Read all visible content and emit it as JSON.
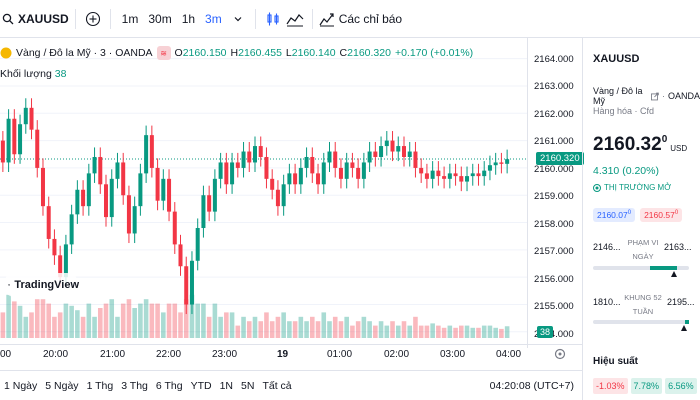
{
  "topbar": {
    "symbol": "XAUUSD",
    "timeframes": [
      "1m",
      "30m",
      "1h",
      "3m"
    ],
    "active_timeframe": "3m",
    "indicators_label": "Các chỉ báo"
  },
  "legend": {
    "title": "Vàng / Đô la Mỹ · 3 · OANDA",
    "o_key": "O",
    "o": "2160.150",
    "h_key": "H",
    "h": "2160.455",
    "l_key": "L",
    "l": "2160.140",
    "c_key": "C",
    "c": "2160.320",
    "change": "+0.170 (+0.01%)",
    "volume_label": "Khối lượng",
    "volume_value": "38"
  },
  "price_axis": [
    "2164.000",
    "2163.000",
    "2162.000",
    "2161.000",
    "2160.000",
    "2159.000",
    "2158.000",
    "2157.000",
    "2156.000",
    "2155.000",
    "2154.000"
  ],
  "current_price_tag": "2160.320",
  "volume_tag": "38",
  "time_axis": [
    "00",
    "20:00",
    "21:00",
    "22:00",
    "23:00",
    "19",
    "01:00",
    "02:00",
    "03:00",
    "04:00"
  ],
  "ranges": [
    "1 Ngày",
    "5 Ngày",
    "1 Thg",
    "3 Thg",
    "6 Thg",
    "YTD",
    "1N",
    "5N",
    "Tất cả"
  ],
  "clock": "04:20:08 (UTC+7)",
  "logo_text": "TradingView",
  "sidebar": {
    "symbol": "XAUUSD",
    "name": "Vàng / Đô la Mỹ",
    "exchange": "OANDA",
    "category": "Hàng hóa · Cfd",
    "price": "2160.32",
    "price_sup": "0",
    "currency": "USD",
    "change": "4.310 (0.20%)",
    "market_status": "THỊ TRƯỜNG MỞ",
    "bid": "2160.07",
    "bid_sup": "0",
    "ask": "2160.57",
    "ask_sup": "0",
    "day_low": "2146...",
    "day_label_1": "PHẠM VI",
    "day_label_2": "NGÀY",
    "day_high": "2163...",
    "wk_low": "1810...",
    "wk_label_1": "KHUNG 52",
    "wk_label_2": "TUẦN",
    "wk_high": "2195...",
    "perf_label": "Hiệu suất",
    "perf": [
      "-1.03%",
      "7.78%",
      "6.56%"
    ]
  },
  "chart_data": {
    "type": "candlestick",
    "x": [
      "19:30",
      "19:36",
      "19:42",
      "19:48",
      "19:54",
      "20:00",
      "20:06",
      "20:12",
      "20:18",
      "20:24",
      "20:30",
      "20:36",
      "20:42",
      "20:48",
      "20:54",
      "21:00",
      "21:06",
      "21:12",
      "21:18",
      "21:24",
      "21:30",
      "21:36",
      "21:42",
      "21:48",
      "21:54",
      "22:00",
      "22:06",
      "22:12",
      "22:18",
      "22:24",
      "22:30",
      "22:36",
      "22:42",
      "22:48",
      "22:54",
      "23:00",
      "23:06",
      "23:12",
      "23:18",
      "23:24",
      "23:30",
      "23:36",
      "23:42",
      "23:48",
      "23:54",
      "00:00",
      "00:06",
      "00:12",
      "00:18",
      "00:24",
      "00:30",
      "00:36",
      "00:42",
      "00:48",
      "00:54",
      "01:00",
      "01:06",
      "01:12",
      "01:18",
      "01:24",
      "01:30",
      "01:36",
      "01:42",
      "01:48",
      "01:54",
      "02:00",
      "02:06",
      "02:12",
      "02:18",
      "02:24",
      "02:30",
      "02:36",
      "02:42",
      "02:48",
      "02:54",
      "03:00",
      "03:06",
      "03:12",
      "03:18",
      "03:24",
      "03:30",
      "03:36",
      "03:42",
      "03:48",
      "03:54",
      "04:00",
      "04:06",
      "04:12",
      "04:18"
    ],
    "open": [
      2161.0,
      2160.2,
      2161.8,
      2160.5,
      2161.6,
      2162.2,
      2161.4,
      2160.0,
      2158.6,
      2157.4,
      2156.8,
      2156.0,
      2157.2,
      2158.3,
      2159.2,
      2158.6,
      2159.8,
      2160.4,
      2159.4,
      2158.2,
      2159.6,
      2160.2,
      2159.0,
      2157.6,
      2158.6,
      2159.8,
      2161.2,
      2160.0,
      2158.8,
      2159.6,
      2158.4,
      2157.2,
      2156.4,
      2155.0,
      2156.6,
      2157.8,
      2159.0,
      2158.4,
      2159.6,
      2160.2,
      2159.4,
      2160.2,
      2160.0,
      2160.6,
      2160.2,
      2160.8,
      2160.4,
      2159.6,
      2159.2,
      2158.6,
      2159.4,
      2159.8,
      2159.4,
      2160.0,
      2160.4,
      2159.8,
      2159.4,
      2160.2,
      2160.6,
      2160.0,
      2159.6,
      2160.2,
      2160.0,
      2159.6,
      2160.2,
      2160.6,
      2160.4,
      2160.8,
      2161.0,
      2160.6,
      2160.8,
      2160.4,
      2160.6,
      2160.0,
      2159.8,
      2159.6,
      2159.9,
      2159.7,
      2159.6,
      2159.8,
      2159.7,
      2159.5,
      2159.7,
      2159.8,
      2159.7,
      2159.9,
      2160.1,
      2160.2,
      2160.15
    ],
    "close": [
      2160.2,
      2161.8,
      2160.5,
      2161.6,
      2162.2,
      2161.4,
      2160.0,
      2158.6,
      2157.4,
      2156.8,
      2156.0,
      2157.2,
      2158.3,
      2159.2,
      2158.6,
      2159.8,
      2160.4,
      2159.4,
      2158.2,
      2159.6,
      2160.2,
      2159.0,
      2157.6,
      2158.6,
      2159.8,
      2161.2,
      2160.0,
      2158.8,
      2159.6,
      2158.4,
      2157.2,
      2156.4,
      2155.0,
      2156.6,
      2157.8,
      2159.0,
      2158.4,
      2159.6,
      2160.2,
      2159.4,
      2160.2,
      2160.0,
      2160.6,
      2160.2,
      2160.8,
      2160.4,
      2159.6,
      2159.2,
      2158.6,
      2159.4,
      2159.8,
      2159.4,
      2160.0,
      2160.4,
      2159.8,
      2159.4,
      2160.2,
      2160.6,
      2160.0,
      2159.6,
      2160.2,
      2160.0,
      2159.6,
      2160.2,
      2160.6,
      2160.4,
      2160.8,
      2161.0,
      2160.6,
      2160.8,
      2160.4,
      2160.6,
      2160.0,
      2159.8,
      2159.6,
      2159.9,
      2159.7,
      2159.6,
      2159.8,
      2159.7,
      2159.5,
      2159.7,
      2159.8,
      2159.7,
      2159.9,
      2160.1,
      2160.2,
      2160.15,
      2160.32
    ],
    "ylim": [
      2153.7,
      2164.5
    ]
  }
}
